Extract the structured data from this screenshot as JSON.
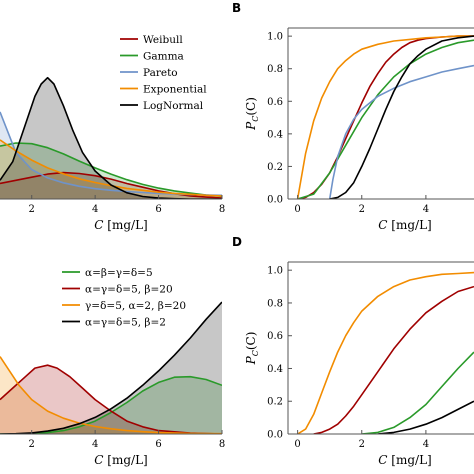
{
  "chart_data": [
    {
      "panel": "A",
      "panel_label": "",
      "type": "area",
      "xlabel_var": "C",
      "xlabel_unit": "[mg/L]",
      "ylabel": "",
      "xlim": [
        1,
        8
      ],
      "ylim": [
        0,
        0.55
      ],
      "xticks": [
        2,
        4,
        6,
        8
      ],
      "legend_position": "top-right",
      "series": [
        {
          "name": "Weibull",
          "color": "#a00000",
          "x": [
            1.0,
            1.5,
            2.0,
            2.5,
            3.0,
            3.5,
            4.0,
            4.5,
            5.0,
            5.5,
            6.0,
            6.5,
            7.0,
            7.5,
            8.0
          ],
          "y": [
            0.05,
            0.06,
            0.07,
            0.08,
            0.085,
            0.082,
            0.075,
            0.064,
            0.05,
            0.038,
            0.026,
            0.017,
            0.01,
            0.006,
            0.003
          ]
        },
        {
          "name": "Gamma",
          "color": "#2a9a2a",
          "x": [
            1.0,
            1.5,
            2.0,
            2.5,
            3.0,
            3.5,
            4.0,
            4.5,
            5.0,
            5.5,
            6.0,
            6.5,
            7.0,
            7.5,
            8.0
          ],
          "y": [
            0.17,
            0.18,
            0.178,
            0.165,
            0.145,
            0.122,
            0.1,
            0.08,
            0.062,
            0.047,
            0.035,
            0.026,
            0.019,
            0.013,
            0.009
          ]
        },
        {
          "name": "Pareto",
          "color": "#6f93c9",
          "x": [
            1.0,
            1.5,
            2.0,
            2.5,
            3.0,
            3.5,
            4.0,
            4.5,
            5.0,
            5.5,
            6.0,
            6.5,
            7.0,
            7.5,
            8.0
          ],
          "y": [
            0.28,
            0.15,
            0.095,
            0.068,
            0.052,
            0.041,
            0.033,
            0.028,
            0.024,
            0.021,
            0.018,
            0.016,
            0.014,
            0.013,
            0.012
          ]
        },
        {
          "name": "Exponential",
          "color": "#f28c00",
          "x": [
            1.0,
            1.5,
            2.0,
            2.5,
            3.0,
            3.5,
            4.0,
            4.5,
            5.0,
            5.5,
            6.0,
            6.5,
            7.0,
            7.5,
            8.0
          ],
          "y": [
            0.19,
            0.155,
            0.125,
            0.1,
            0.081,
            0.065,
            0.053,
            0.043,
            0.034,
            0.028,
            0.022,
            0.018,
            0.015,
            0.012,
            0.01
          ]
        },
        {
          "name": "LogNormal",
          "color": "#000000",
          "x": [
            1.0,
            1.4,
            1.8,
            2.1,
            2.3,
            2.5,
            2.7,
            3.0,
            3.3,
            3.6,
            4.0,
            4.5,
            5.0,
            5.5,
            6.0,
            6.5,
            7.0,
            8.0
          ],
          "y": [
            0.06,
            0.12,
            0.24,
            0.33,
            0.37,
            0.39,
            0.37,
            0.3,
            0.22,
            0.15,
            0.09,
            0.045,
            0.02,
            0.008,
            0.003,
            0.001,
            0.0,
            0.0
          ]
        }
      ]
    },
    {
      "panel": "B",
      "panel_label": "B",
      "type": "line",
      "xlabel_var": "C",
      "xlabel_unit": "[mg/L]",
      "ylabel_var": "P",
      "ylabel_sub": "C",
      "ylabel_arg": "(C)",
      "xlim": [
        -0.3,
        5.5
      ],
      "ylim": [
        0,
        1.05
      ],
      "xticks": [
        0,
        2,
        4
      ],
      "yticks": [
        0.0,
        0.2,
        0.4,
        0.6,
        0.8,
        1.0
      ],
      "series": [
        {
          "name": "Weibull",
          "color": "#a00000",
          "x": [
            0.0,
            0.25,
            0.5,
            0.75,
            1.0,
            1.25,
            1.5,
            1.75,
            2.0,
            2.25,
            2.5,
            2.75,
            3.0,
            3.25,
            3.5,
            3.75,
            4.0,
            4.5,
            5.0,
            5.5
          ],
          "y": [
            0.0,
            0.01,
            0.04,
            0.09,
            0.16,
            0.26,
            0.37,
            0.48,
            0.59,
            0.69,
            0.77,
            0.84,
            0.89,
            0.93,
            0.96,
            0.975,
            0.985,
            0.995,
            1.0,
            1.0
          ]
        },
        {
          "name": "Gamma",
          "color": "#2a9a2a",
          "x": [
            0.0,
            0.5,
            1.0,
            1.5,
            2.0,
            2.5,
            3.0,
            3.5,
            4.0,
            4.5,
            5.0,
            5.5
          ],
          "y": [
            0.0,
            0.03,
            0.16,
            0.33,
            0.5,
            0.64,
            0.75,
            0.83,
            0.89,
            0.93,
            0.96,
            0.975
          ]
        },
        {
          "name": "Pareto",
          "color": "#6f93c9",
          "x": [
            1.0,
            1.1,
            1.25,
            1.5,
            1.75,
            2.0,
            2.5,
            3.0,
            3.5,
            4.0,
            4.5,
            5.0,
            5.5
          ],
          "y": [
            0.0,
            0.12,
            0.26,
            0.4,
            0.49,
            0.55,
            0.63,
            0.68,
            0.72,
            0.75,
            0.78,
            0.8,
            0.82
          ]
        },
        {
          "name": "Exponential",
          "color": "#f28c00",
          "x": [
            0.0,
            0.25,
            0.5,
            0.75,
            1.0,
            1.25,
            1.5,
            1.75,
            2.0,
            2.5,
            3.0,
            3.5,
            4.0,
            4.5,
            5.0,
            5.5
          ],
          "y": [
            0.0,
            0.28,
            0.48,
            0.62,
            0.72,
            0.8,
            0.85,
            0.89,
            0.92,
            0.95,
            0.97,
            0.98,
            0.99,
            0.995,
            1.0,
            1.0
          ]
        },
        {
          "name": "LogNormal",
          "color": "#000000",
          "x": [
            1.0,
            1.25,
            1.5,
            1.75,
            2.0,
            2.25,
            2.5,
            2.75,
            3.0,
            3.25,
            3.5,
            3.75,
            4.0,
            4.5,
            5.0,
            5.5
          ],
          "y": [
            0.0,
            0.01,
            0.04,
            0.1,
            0.2,
            0.31,
            0.43,
            0.55,
            0.66,
            0.75,
            0.83,
            0.88,
            0.92,
            0.97,
            0.99,
            1.0
          ]
        }
      ]
    },
    {
      "panel": "C",
      "panel_label": "",
      "type": "area",
      "xlabel_var": "C",
      "xlabel_unit": "[mg/L]",
      "ylabel": "",
      "xlim": [
        1,
        8
      ],
      "ylim": [
        0,
        0.6
      ],
      "xticks": [
        2,
        4,
        6,
        8
      ],
      "legend_position": "top-right",
      "series": [
        {
          "name": "α=β=γ=δ=5",
          "color": "#2a9a2a",
          "x": [
            1.0,
            1.5,
            2.0,
            2.5,
            3.0,
            3.5,
            4.0,
            4.5,
            5.0,
            5.5,
            6.0,
            6.5,
            7.0,
            7.5,
            8.0
          ],
          "y": [
            0.0,
            0.0,
            0.002,
            0.005,
            0.012,
            0.025,
            0.045,
            0.075,
            0.11,
            0.15,
            0.18,
            0.198,
            0.2,
            0.19,
            0.17
          ]
        },
        {
          "name": "α=γ=δ=5, β=20",
          "color": "#a00000",
          "x": [
            1.0,
            1.4,
            1.8,
            2.1,
            2.5,
            2.8,
            3.2,
            3.6,
            4.0,
            4.5,
            5.0,
            5.5,
            6.0,
            7.0,
            8.0
          ],
          "y": [
            0.12,
            0.16,
            0.2,
            0.23,
            0.24,
            0.23,
            0.2,
            0.16,
            0.12,
            0.08,
            0.045,
            0.025,
            0.012,
            0.003,
            0.0
          ]
        },
        {
          "name": "γ=δ=5, α=2, β=20",
          "color": "#f28c00",
          "x": [
            1.0,
            1.3,
            1.6,
            2.0,
            2.5,
            3.0,
            3.5,
            4.0,
            4.5,
            5.0,
            5.5,
            6.0,
            7.0,
            8.0
          ],
          "y": [
            0.27,
            0.22,
            0.17,
            0.12,
            0.08,
            0.055,
            0.038,
            0.026,
            0.018,
            0.012,
            0.008,
            0.005,
            0.002,
            0.001
          ]
        },
        {
          "name": "α=γ=δ=5, β=2",
          "color": "#000000",
          "x": [
            1.0,
            1.5,
            2.0,
            2.5,
            3.0,
            3.5,
            4.0,
            4.5,
            5.0,
            5.5,
            6.0,
            6.5,
            7.0,
            7.5,
            8.0
          ],
          "y": [
            0.0,
            0.001,
            0.004,
            0.01,
            0.02,
            0.036,
            0.058,
            0.088,
            0.125,
            0.17,
            0.22,
            0.275,
            0.335,
            0.4,
            0.46
          ]
        }
      ]
    },
    {
      "panel": "D",
      "panel_label": "D",
      "type": "line",
      "xlabel_var": "C",
      "xlabel_unit": "[mg/L]",
      "ylabel_var": "P",
      "ylabel_sub": "C",
      "ylabel_arg": "(C)",
      "xlim": [
        -0.3,
        5.5
      ],
      "ylim": [
        0,
        1.05
      ],
      "xticks": [
        0,
        2,
        4
      ],
      "yticks": [
        0.0,
        0.2,
        0.4,
        0.6,
        0.8,
        1.0
      ],
      "series": [
        {
          "name": "γ=δ=5, α=2, β=20",
          "color": "#f28c00",
          "x": [
            0.0,
            0.25,
            0.5,
            0.75,
            1.0,
            1.25,
            1.5,
            1.75,
            2.0,
            2.5,
            3.0,
            3.5,
            4.0,
            4.5,
            5.0,
            5.5
          ],
          "y": [
            0.0,
            0.03,
            0.12,
            0.25,
            0.38,
            0.5,
            0.6,
            0.68,
            0.75,
            0.84,
            0.9,
            0.94,
            0.96,
            0.975,
            0.98,
            0.985
          ]
        },
        {
          "name": "α=γ=δ=5, β=20",
          "color": "#a00000",
          "x": [
            0.5,
            0.75,
            1.0,
            1.25,
            1.5,
            1.75,
            2.0,
            2.5,
            3.0,
            3.5,
            4.0,
            4.5,
            5.0,
            5.5
          ],
          "y": [
            0.0,
            0.01,
            0.03,
            0.06,
            0.11,
            0.17,
            0.24,
            0.38,
            0.52,
            0.64,
            0.74,
            0.81,
            0.87,
            0.9
          ]
        },
        {
          "name": "α=β=γ=δ=5",
          "color": "#2a9a2a",
          "x": [
            2.0,
            2.5,
            3.0,
            3.5,
            4.0,
            4.5,
            5.0,
            5.5
          ],
          "y": [
            0.0,
            0.01,
            0.04,
            0.1,
            0.18,
            0.29,
            0.4,
            0.5
          ]
        },
        {
          "name": "α=γ=δ=5, β=2",
          "color": "#000000",
          "x": [
            2.5,
            3.0,
            3.5,
            4.0,
            4.5,
            5.0,
            5.5
          ],
          "y": [
            0.0,
            0.01,
            0.03,
            0.06,
            0.1,
            0.15,
            0.2
          ]
        }
      ]
    }
  ]
}
